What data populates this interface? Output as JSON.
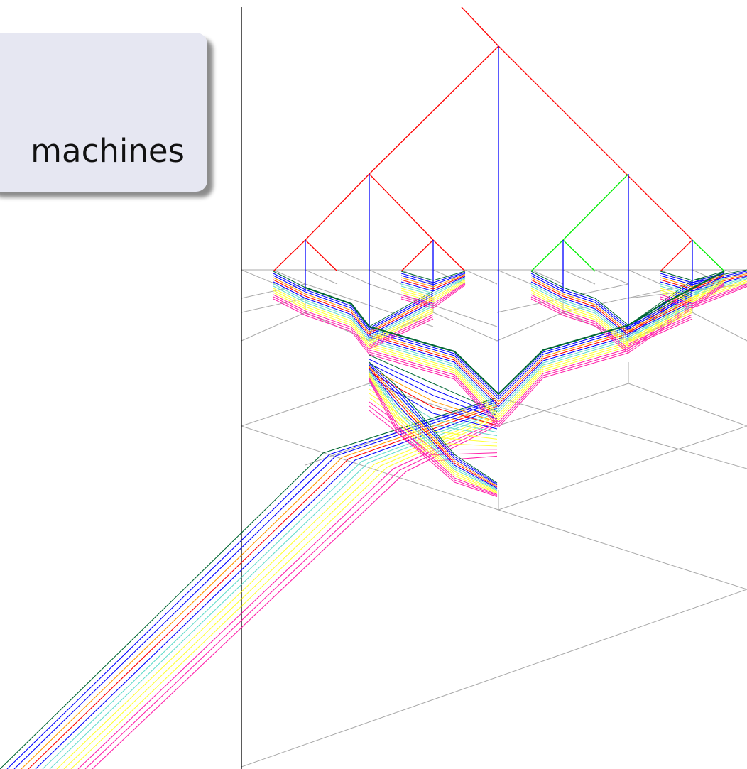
{
  "callout": {
    "text": "machines"
  },
  "colors": {
    "grid": "#a8a8a8",
    "axis": "#000000",
    "red": "#ff0000",
    "blue": "#0000ff",
    "green": "#00ee00",
    "yellow": "#ffff33",
    "cyan": "#66dccc",
    "magenta": "#ff22aa",
    "orange": "#ff9900",
    "darkgreen": "#006633"
  }
}
